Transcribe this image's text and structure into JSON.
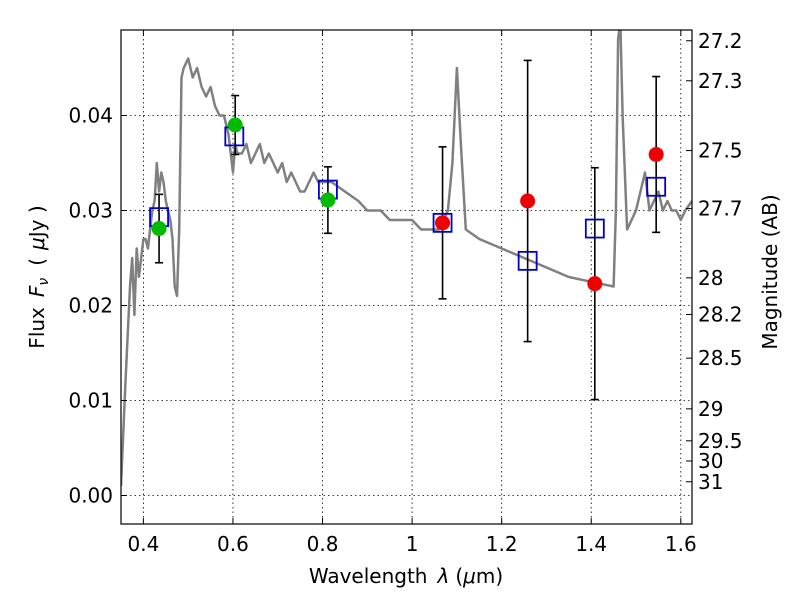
{
  "chart_data": {
    "type": "scatter",
    "title": "",
    "xlabel_text": "Wavelength",
    "xlabel_symbol": "λ",
    "xlabel_unit_open": "(",
    "xlabel_unit_mu": "μ",
    "xlabel_unit_rest": "m)",
    "ylabel_text": "Flux",
    "ylabel_symbol": "F",
    "ylabel_subscript": "ν",
    "ylabel_unit_open": "(",
    "ylabel_unit_mu": "μ",
    "ylabel_unit_rest": "Jy )",
    "y2label": "Magnitude (AB)",
    "xlim": [
      0.35,
      1.625
    ],
    "ylim": [
      -0.003,
      0.049
    ],
    "grid": true,
    "x_ticks": [
      {
        "value": 0.4,
        "label": "0.4"
      },
      {
        "value": 0.6,
        "label": "0.6"
      },
      {
        "value": 0.8,
        "label": "0.8"
      },
      {
        "value": 1.0,
        "label": "1"
      },
      {
        "value": 1.2,
        "label": "1.2"
      },
      {
        "value": 1.4,
        "label": "1.4"
      },
      {
        "value": 1.6,
        "label": "1.6"
      }
    ],
    "y_ticks": [
      {
        "value": 0.0,
        "label": "0.00"
      },
      {
        "value": 0.01,
        "label": "0.01"
      },
      {
        "value": 0.02,
        "label": "0.02"
      },
      {
        "value": 0.03,
        "label": "0.03"
      },
      {
        "value": 0.04,
        "label": "0.04"
      }
    ],
    "y2_ticks": [
      {
        "value": 27.2,
        "label": "27.2"
      },
      {
        "value": 27.3,
        "label": "27.3"
      },
      {
        "value": 27.5,
        "label": "27.5"
      },
      {
        "value": 27.7,
        "label": "27.7"
      },
      {
        "value": 28,
        "label": "28"
      },
      {
        "value": 28.2,
        "label": "28.2"
      },
      {
        "value": 28.5,
        "label": "28.5"
      },
      {
        "value": 29,
        "label": "29"
      },
      {
        "value": 29.5,
        "label": "29.5"
      },
      {
        "value": 30,
        "label": "30"
      },
      {
        "value": 31,
        "label": "31"
      }
    ],
    "model_spectrum": {
      "color": "#808080",
      "x": [
        0.35,
        0.36,
        0.37,
        0.375,
        0.38,
        0.385,
        0.39,
        0.395,
        0.4,
        0.405,
        0.41,
        0.415,
        0.42,
        0.425,
        0.43,
        0.435,
        0.44,
        0.445,
        0.45,
        0.455,
        0.46,
        0.465,
        0.47,
        0.475,
        0.48,
        0.485,
        0.49,
        0.5,
        0.51,
        0.52,
        0.53,
        0.54,
        0.55,
        0.56,
        0.57,
        0.58,
        0.59,
        0.595,
        0.6,
        0.605,
        0.61,
        0.62,
        0.63,
        0.64,
        0.65,
        0.66,
        0.67,
        0.68,
        0.69,
        0.7,
        0.71,
        0.72,
        0.73,
        0.74,
        0.75,
        0.76,
        0.77,
        0.78,
        0.79,
        0.8,
        0.82,
        0.85,
        0.88,
        0.9,
        0.93,
        0.95,
        0.98,
        1.0,
        1.02,
        1.04,
        1.06,
        1.08,
        1.09,
        1.1,
        1.11,
        1.12,
        1.15,
        1.2,
        1.25,
        1.3,
        1.35,
        1.4,
        1.45,
        1.455,
        1.46,
        1.465,
        1.47,
        1.48,
        1.5,
        1.51,
        1.52,
        1.53,
        1.54,
        1.55,
        1.56,
        1.57,
        1.58,
        1.59,
        1.6,
        1.61,
        1.625
      ],
      "y": [
        0.001,
        0.012,
        0.022,
        0.025,
        0.019,
        0.026,
        0.023,
        0.025,
        0.027,
        0.027,
        0.026,
        0.028,
        0.03,
        0.031,
        0.035,
        0.032,
        0.034,
        0.033,
        0.031,
        0.03,
        0.029,
        0.027,
        0.022,
        0.021,
        0.028,
        0.044,
        0.045,
        0.046,
        0.044,
        0.045,
        0.043,
        0.042,
        0.043,
        0.041,
        0.04,
        0.04,
        0.038,
        0.036,
        0.034,
        0.037,
        0.036,
        0.036,
        0.037,
        0.035,
        0.036,
        0.037,
        0.035,
        0.036,
        0.035,
        0.034,
        0.035,
        0.033,
        0.034,
        0.033,
        0.032,
        0.032,
        0.033,
        0.034,
        0.033,
        0.033,
        0.033,
        0.032,
        0.031,
        0.03,
        0.03,
        0.029,
        0.029,
        0.029,
        0.028,
        0.028,
        0.028,
        0.03,
        0.035,
        0.045,
        0.036,
        0.028,
        0.027,
        0.026,
        0.025,
        0.024,
        0.023,
        0.0225,
        0.022,
        0.03,
        0.048,
        0.05,
        0.04,
        0.028,
        0.03,
        0.032,
        0.034,
        0.03,
        0.031,
        0.032,
        0.03,
        0.031,
        0.03,
        0.03,
        0.029,
        0.03,
        0.031
      ]
    },
    "series": [
      {
        "marker": "open-square",
        "color": "#0000cc",
        "x": [
          0.435,
          0.603,
          0.812,
          1.068,
          1.258,
          1.408,
          1.545
        ],
        "y": [
          0.0293,
          0.0378,
          0.0322,
          0.0287,
          0.0247,
          0.0281,
          0.0325
        ]
      },
      {
        "marker": "circle",
        "color": "#00bb00",
        "x": [
          0.435,
          0.605,
          0.812
        ],
        "y": [
          0.0281,
          0.039,
          0.0311
        ],
        "yerr": [
          0.0036,
          0.0031,
          0.0035
        ]
      },
      {
        "marker": "circle",
        "color": "#ee0000",
        "x": [
          1.068,
          1.258,
          1.408,
          1.545
        ],
        "y": [
          0.0287,
          0.031,
          0.0223,
          0.0359
        ],
        "yerr": [
          0.008,
          0.0148,
          0.0122,
          0.0082
        ]
      }
    ]
  }
}
